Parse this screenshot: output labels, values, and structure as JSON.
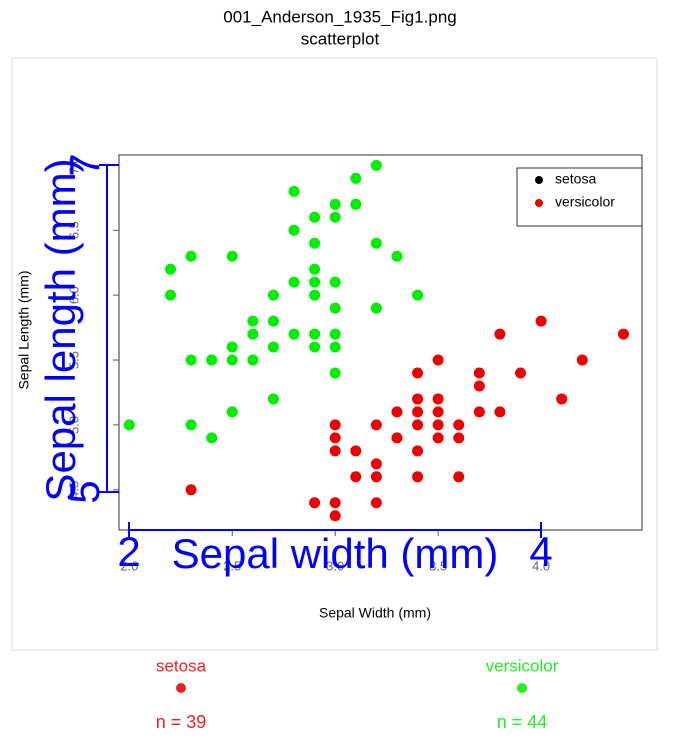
{
  "chart_data": {
    "type": "scatter",
    "title": "001_Anderson_1935_Fig1.png",
    "subtitle": "scatterplot",
    "x_label": "Sepal Width (mm)",
    "y_label": "Sepal Length (mm)",
    "xlim": [
      1.95,
      4.49
    ],
    "ylim": [
      4.19,
      7.08
    ],
    "xticks": [
      {
        "value": 2,
        "label": "2.0"
      },
      2.5,
      {
        "value": 3,
        "label": "3.0"
      },
      3.5,
      {
        "value": 4,
        "label": "4.0"
      }
    ],
    "yticks": [
      4.5,
      {
        "value": 5,
        "label": "5.0"
      },
      5.5,
      {
        "value": 6,
        "label": "6.0"
      },
      6.5,
      {
        "value": 7,
        "label": "7.0"
      }
    ],
    "series": [
      {
        "color": "#00ee00",
        "x": [
          2.0,
          2.2,
          2.2,
          2.3,
          2.3,
          2.3,
          2.4,
          2.4,
          2.5,
          2.5,
          2.5,
          2.5,
          2.6,
          2.6,
          2.6,
          2.7,
          2.7,
          2.7,
          2.7,
          2.8,
          2.8,
          2.8,
          2.8,
          2.9,
          2.9,
          2.9,
          2.9,
          2.9,
          2.9,
          2.9,
          3.0,
          3.0,
          3.0,
          3.0,
          3.0,
          3.0,
          3.0,
          3.1,
          3.1,
          3.2,
          3.2,
          3.2,
          3.3,
          3.4
        ],
        "values": [
          5.0,
          6.2,
          6.0,
          6.3,
          5.5,
          5.0,
          5.5,
          4.9,
          6.3,
          5.6,
          5.5,
          5.1,
          5.7,
          5.5,
          5.8,
          6.0,
          5.8,
          5.6,
          5.2,
          6.8,
          6.5,
          6.1,
          5.7,
          6.6,
          6.4,
          6.2,
          6.1,
          6.0,
          5.7,
          5.6,
          6.7,
          6.6,
          6.1,
          5.9,
          5.7,
          5.6,
          5.4,
          6.9,
          6.7,
          7.0,
          6.4,
          5.9,
          6.3,
          6.0
        ]
      },
      {
        "color": "#ee0000",
        "x": [
          2.3,
          2.9,
          3.0,
          3.0,
          3.0,
          3.0,
          3.0,
          3.1,
          3.1,
          3.2,
          3.2,
          3.2,
          3.2,
          3.3,
          3.3,
          3.4,
          3.4,
          3.4,
          3.4,
          3.4,
          3.4,
          3.5,
          3.5,
          3.5,
          3.5,
          3.5,
          3.6,
          3.6,
          3.6,
          3.7,
          3.7,
          3.7,
          3.8,
          3.8,
          3.9,
          4.0,
          4.1,
          4.2,
          4.4
        ],
        "values": [
          4.5,
          4.4,
          4.4,
          4.3,
          5.0,
          4.9,
          4.8,
          4.8,
          4.6,
          5.0,
          4.7,
          4.6,
          4.4,
          5.1,
          4.9,
          5.4,
          5.2,
          5.1,
          5.0,
          4.8,
          4.6,
          5.5,
          5.2,
          5.1,
          5.0,
          4.9,
          5.0,
          4.9,
          4.6,
          5.4,
          5.3,
          5.1,
          5.7,
          5.1,
          5.4,
          5.8,
          5.2,
          5.5,
          5.7
        ]
      }
    ],
    "legend": {
      "position": "top-right",
      "items": [
        {
          "name": "setosa",
          "color": "#000000"
        },
        {
          "name": "versicolor",
          "color": "#ee0000"
        }
      ]
    },
    "overlay": {
      "color": "#0000ff",
      "x_label": "Sepal width (mm)",
      "y_label": "Sepal length (mm)",
      "xlim": [
        2,
        4
      ],
      "ylim": [
        5,
        7
      ],
      "xticks": [
        2,
        4
      ],
      "yticks": [
        5,
        7
      ]
    }
  },
  "groups": [
    {
      "label": "setosa",
      "color": "#ee2222",
      "count": "n = 39"
    },
    {
      "label": "versicolor",
      "color": "#22ee22",
      "count": "n = 44"
    }
  ]
}
